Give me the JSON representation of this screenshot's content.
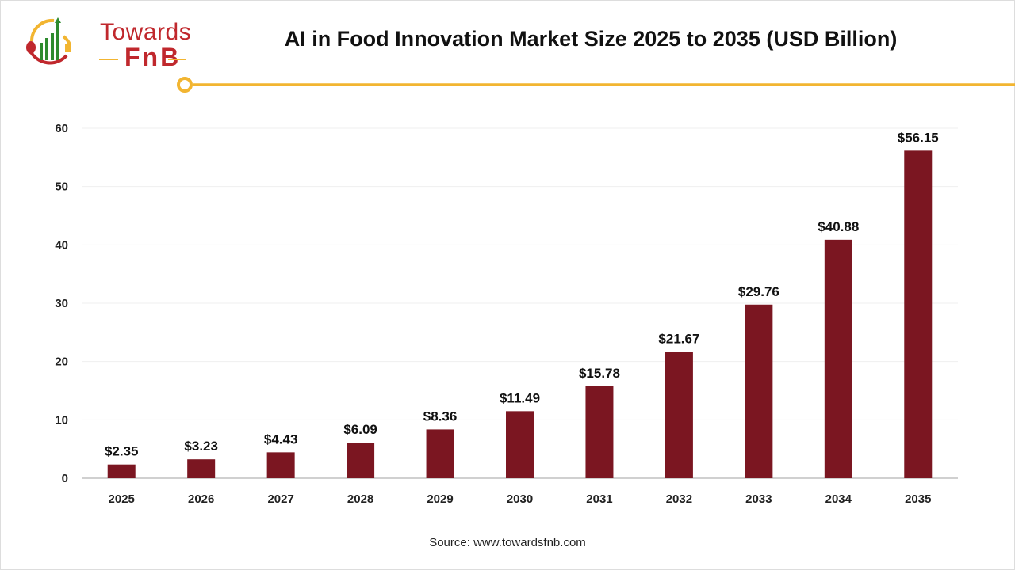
{
  "logo": {
    "line1": "Towards",
    "line2": "FnB"
  },
  "colors": {
    "bar": "#7b1621",
    "accent": "#f2b531",
    "brand_red": "#c0282d",
    "brand_green": "#2e8b2e"
  },
  "source": "Source: www.towardsfnb.com",
  "chart_data": {
    "type": "bar",
    "title": "AI in Food Innovation Market Size 2025 to 2035 (USD Billion)",
    "xlabel": "",
    "ylabel": "",
    "categories": [
      "2025",
      "2026",
      "2027",
      "2028",
      "2029",
      "2030",
      "2031",
      "2032",
      "2033",
      "2034",
      "2035"
    ],
    "values": [
      2.35,
      3.23,
      4.43,
      6.09,
      8.36,
      11.49,
      15.78,
      21.67,
      29.76,
      40.88,
      56.15
    ],
    "data_labels": [
      "$2.35",
      "$3.23",
      "$4.43",
      "$6.09",
      "$8.36",
      "$11.49",
      "$15.78",
      "$21.67",
      "$29.76",
      "$40.88",
      "$56.15"
    ],
    "yticks": [
      0,
      10,
      20,
      30,
      40,
      50,
      60
    ],
    "ylim": [
      0,
      60
    ],
    "grid": true,
    "legend": "none"
  }
}
